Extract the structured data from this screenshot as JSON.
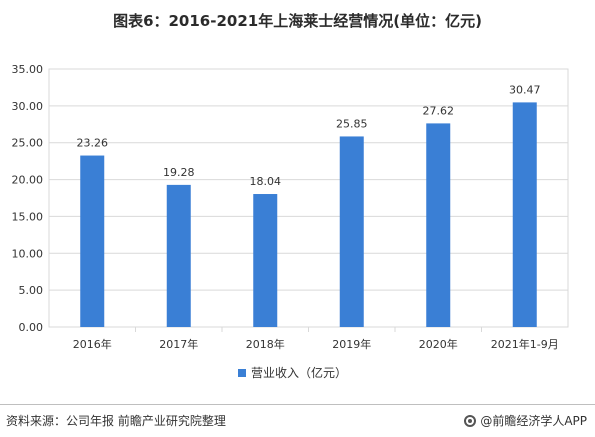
{
  "title": "图表6：2016-2021年上海莱士经营情况(单位：亿元)",
  "legend_label": "营业收入（亿元）",
  "source_text": "资料来源：公司年报 前瞻产业研究院整理",
  "brand_text": "@前瞻经济学人APP",
  "colors": {
    "bar": "#3a7fd5",
    "grid": "#d9d9d9",
    "axis_text": "#333333"
  },
  "chart_data": {
    "type": "bar",
    "title": "图表6：2016-2021年上海莱士经营情况(单位：亿元)",
    "categories": [
      "2016年",
      "2017年",
      "2018年",
      "2019年",
      "2020年",
      "2021年1-9月"
    ],
    "series": [
      {
        "name": "营业收入（亿元）",
        "values": [
          23.26,
          19.28,
          18.04,
          25.85,
          27.62,
          30.47
        ],
        "labels": [
          "23.26",
          "19.28",
          "18.04",
          "25.85",
          "27.62",
          "30.47"
        ]
      }
    ],
    "ylim": [
      0,
      35
    ],
    "yticks": [
      0,
      5,
      10,
      15,
      20,
      25,
      30,
      35
    ],
    "ytick_labels": [
      "0.00",
      "5.00",
      "10.00",
      "15.00",
      "20.00",
      "25.00",
      "30.00",
      "35.00"
    ],
    "grid": true,
    "legend_position": "bottom"
  }
}
